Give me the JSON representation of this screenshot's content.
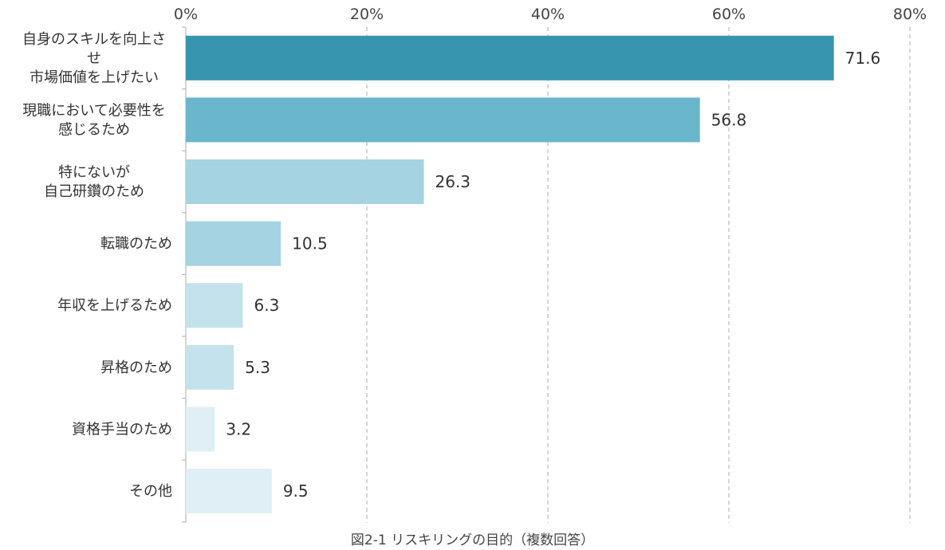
{
  "chart_data": {
    "type": "bar",
    "orientation": "horizontal",
    "categories": [
      [
        "自身のスキルを向上さ",
        "せ",
        "市場価値を上げたい"
      ],
      [
        "現職において必要性を",
        "感じるため"
      ],
      [
        "特にないが",
        "自己研鑽のため"
      ],
      [
        "転職のため"
      ],
      [
        "年収を上げるため"
      ],
      [
        "昇格のため"
      ],
      [
        "資格手当のため"
      ],
      [
        "その他"
      ]
    ],
    "values": [
      71.6,
      56.8,
      26.3,
      10.5,
      6.3,
      5.3,
      3.2,
      9.5
    ],
    "value_labels": [
      "71.6",
      "56.8",
      "26.3",
      "10.5",
      "6.3",
      "5.3",
      "3.2",
      "9.5"
    ],
    "bar_colors": [
      "#3795B0",
      "#6AB6CC",
      "#A5D3E1",
      "#A5D3E1",
      "#C4E2EB",
      "#C4E2EB",
      "#DFEFF5",
      "#DFEFF5"
    ],
    "xlim": [
      0,
      80
    ],
    "xticks": [
      0,
      20,
      40,
      60,
      80
    ],
    "xtick_labels": [
      "0%",
      "20%",
      "40%",
      "60%",
      "80%"
    ],
    "xaxis_position": "top",
    "grid": true,
    "grid_style": "dashed"
  },
  "caption": "図2-1 リスキリングの目的（複数回答）"
}
